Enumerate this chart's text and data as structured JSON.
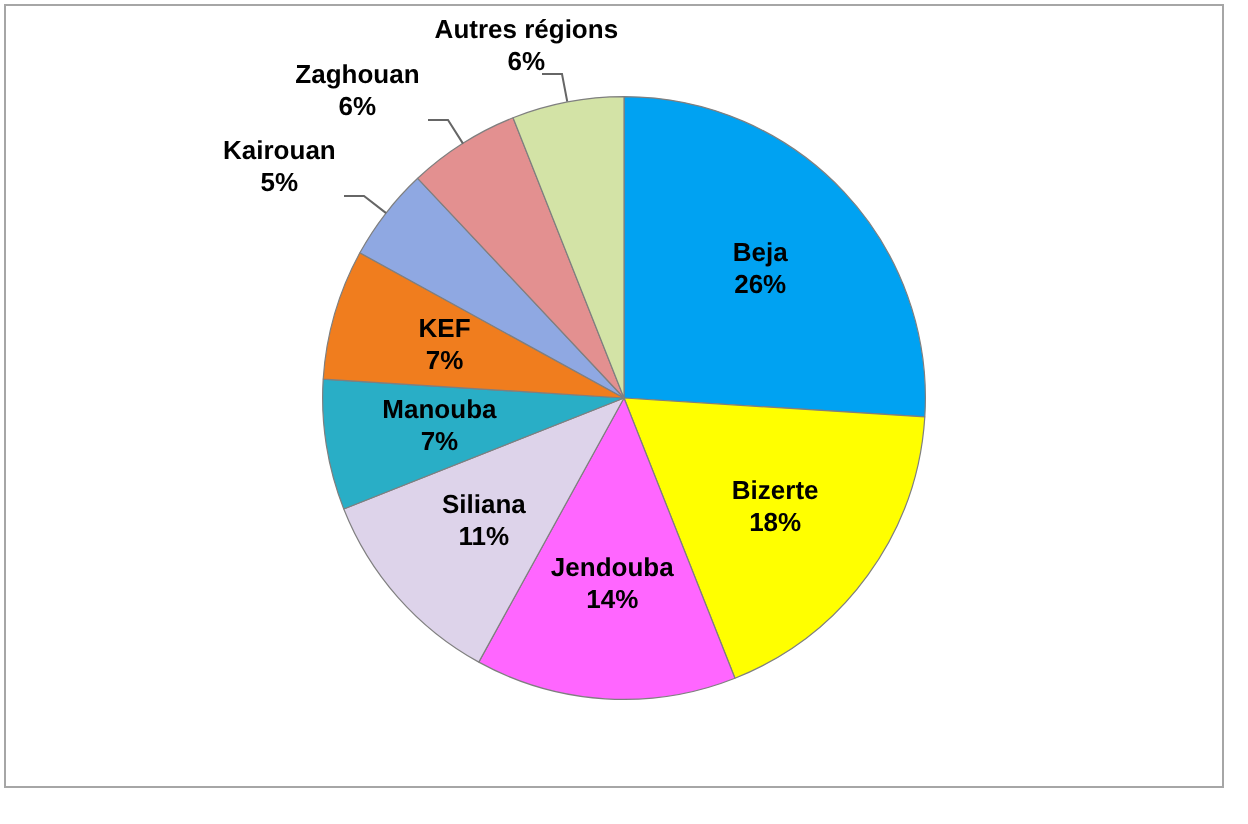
{
  "chart_data": {
    "type": "pie",
    "categories": [
      "Beja",
      "Bizerte",
      "Jendouba",
      "Siliana",
      "Manouba",
      "KEF",
      "Kairouan",
      "Zaghouan",
      "Autres régions"
    ],
    "values": [
      26,
      18,
      14,
      11,
      7,
      7,
      5,
      6,
      6
    ],
    "value_labels": [
      "26%",
      "18%",
      "14%",
      "11%",
      "7%",
      "7%",
      "5%",
      "6%",
      "6%"
    ],
    "colors": [
      "#00a2f2",
      "#ffff00",
      "#ff66ff",
      "#ddd3ea",
      "#29aec6",
      "#f07d1e",
      "#8fa8e2",
      "#e39090",
      "#d3e3a6"
    ],
    "legend": false
  }
}
